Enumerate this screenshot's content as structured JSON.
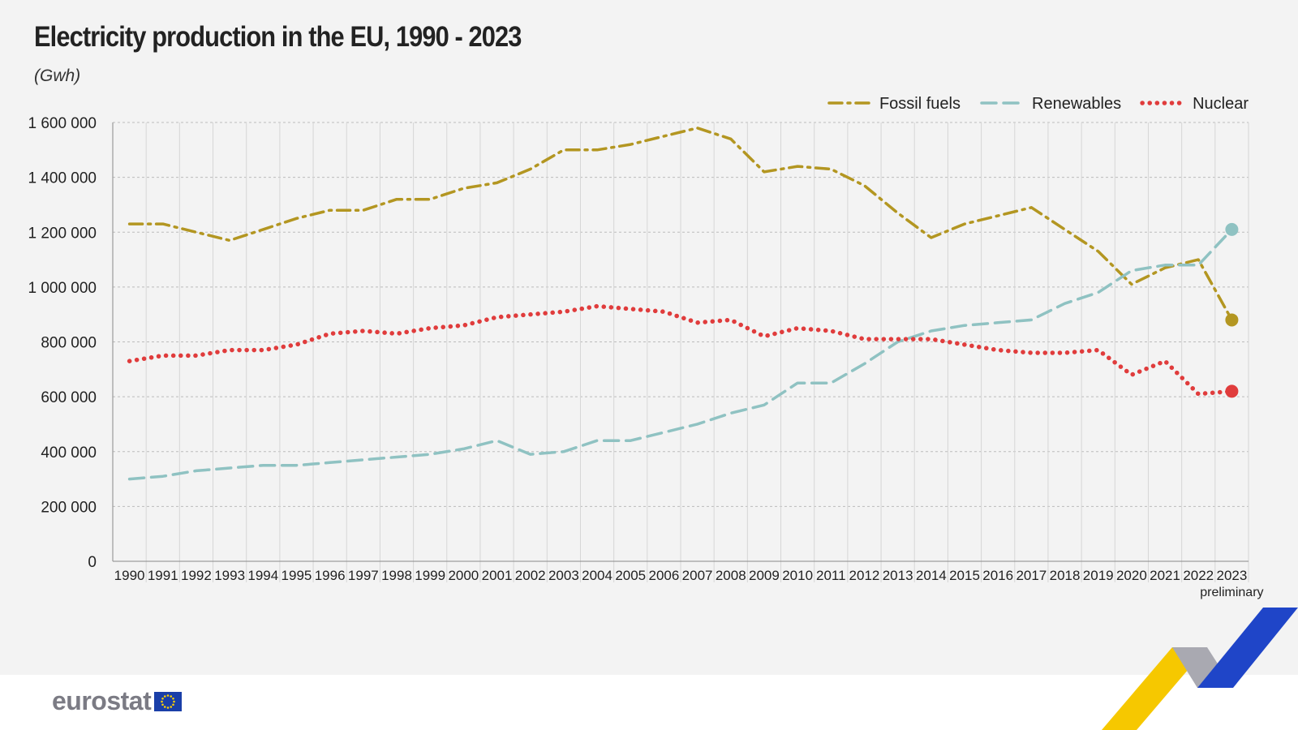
{
  "title": "Electricity production in the EU, 1990 - 2023",
  "unit": "(Gwh)",
  "logo_text": "eurostat",
  "colors": {
    "fossil": "#b39621",
    "renewables": "#8fc2c2",
    "nuclear": "#e03c3c",
    "background": "#f3f3f3",
    "grid": "#bcbcbc"
  },
  "chart_data": {
    "type": "line",
    "title": "Electricity production in the EU, 1990 - 2023",
    "ylabel": "(Gwh)",
    "ylim": [
      0,
      1600000
    ],
    "yticks": [
      0,
      200000,
      400000,
      600000,
      800000,
      1000000,
      1200000,
      1400000,
      1600000
    ],
    "ytick_labels": [
      "0",
      "200 000",
      "400 000",
      "600 000",
      "800 000",
      "1 000 000",
      "1 200 000",
      "1 400 000",
      "1 600 000"
    ],
    "categories": [
      "1990",
      "1991",
      "1992",
      "1993",
      "1994",
      "1995",
      "1996",
      "1997",
      "1998",
      "1999",
      "2000",
      "2001",
      "2002",
      "2003",
      "2004",
      "2005",
      "2006",
      "2007",
      "2008",
      "2009",
      "2010",
      "2011",
      "2012",
      "2013",
      "2014",
      "2015",
      "2016",
      "2017",
      "2018",
      "2019",
      "2020",
      "2021",
      "2022",
      "2023"
    ],
    "last_category_note": "preliminary",
    "grid": true,
    "legend_position": "top-right",
    "series": [
      {
        "name": "Fossil fuels",
        "style": "dash-dot",
        "values": [
          1230000,
          1230000,
          1200000,
          1170000,
          1210000,
          1250000,
          1280000,
          1280000,
          1320000,
          1320000,
          1360000,
          1380000,
          1430000,
          1500000,
          1500000,
          1520000,
          1550000,
          1580000,
          1540000,
          1420000,
          1440000,
          1430000,
          1370000,
          1270000,
          1180000,
          1230000,
          1260000,
          1290000,
          1210000,
          1130000,
          1010000,
          1070000,
          1100000,
          880000
        ]
      },
      {
        "name": "Renewables",
        "style": "dashed",
        "values": [
          300000,
          310000,
          330000,
          340000,
          350000,
          350000,
          360000,
          370000,
          380000,
          390000,
          410000,
          440000,
          390000,
          400000,
          440000,
          440000,
          470000,
          500000,
          540000,
          570000,
          650000,
          650000,
          720000,
          800000,
          840000,
          860000,
          870000,
          880000,
          940000,
          980000,
          1060000,
          1080000,
          1080000,
          1210000
        ]
      },
      {
        "name": "Nuclear",
        "style": "dotted",
        "values": [
          730000,
          750000,
          750000,
          770000,
          770000,
          790000,
          830000,
          840000,
          830000,
          850000,
          860000,
          890000,
          900000,
          910000,
          930000,
          920000,
          910000,
          870000,
          880000,
          820000,
          850000,
          840000,
          810000,
          810000,
          810000,
          790000,
          770000,
          760000,
          760000,
          770000,
          680000,
          730000,
          610000,
          620000
        ]
      }
    ]
  }
}
